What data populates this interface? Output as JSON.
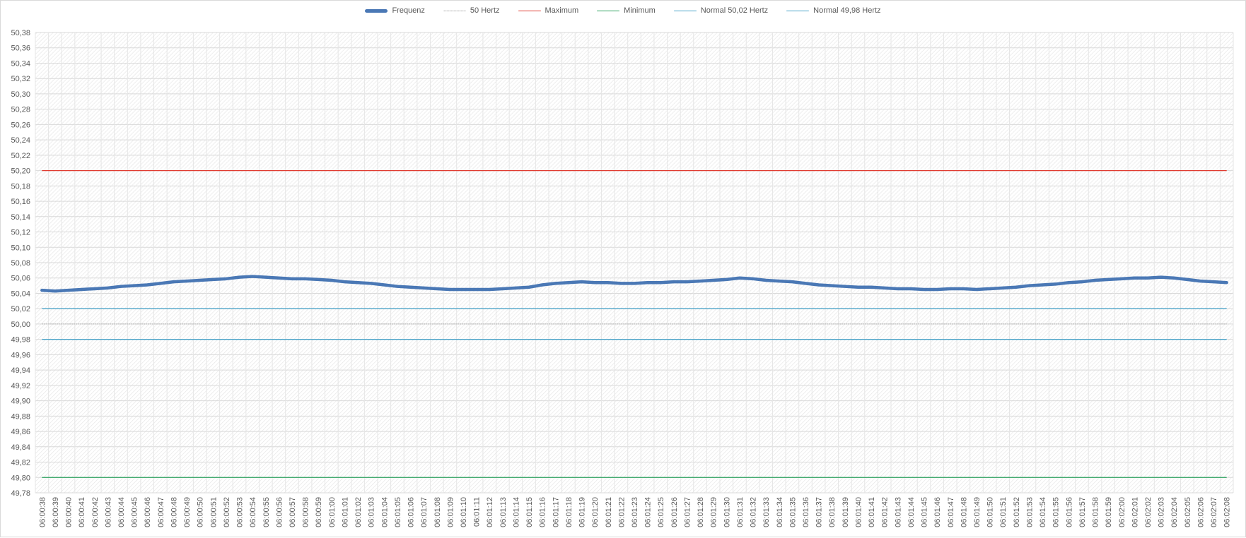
{
  "chart_data": {
    "type": "line",
    "title": "",
    "xlabel": "",
    "ylabel": "",
    "ylim": [
      49.78,
      50.38
    ],
    "grid": true,
    "legend_position": "top",
    "yticks": [
      "50,38",
      "50,36",
      "50,34",
      "50,32",
      "50,30",
      "50,28",
      "50,26",
      "50,24",
      "50,22",
      "50,20",
      "50,18",
      "50,16",
      "50,14",
      "50,12",
      "50,10",
      "50,08",
      "50,06",
      "50,04",
      "50,02",
      "50,00",
      "49,98",
      "49,96",
      "49,94",
      "49,92",
      "49,90",
      "49,88",
      "49,86",
      "49,84",
      "49,82",
      "49,80",
      "49,78"
    ],
    "x": [
      "06:00:38",
      "06:00:39",
      "06:00:40",
      "06:00:41",
      "06:00:42",
      "06:00:43",
      "06:00:44",
      "06:00:45",
      "06:00:46",
      "06:00:47",
      "06:00:48",
      "06:00:49",
      "06:00:50",
      "06:00:51",
      "06:00:52",
      "06:00:53",
      "06:00:54",
      "06:00:55",
      "06:00:56",
      "06:00:57",
      "06:00:58",
      "06:00:59",
      "06:01:00",
      "06:01:01",
      "06:01:02",
      "06:01:03",
      "06:01:04",
      "06:01:05",
      "06:01:06",
      "06:01:07",
      "06:01:08",
      "06:01:09",
      "06:01:10",
      "06:01:11",
      "06:01:12",
      "06:01:13",
      "06:01:14",
      "06:01:15",
      "06:01:16",
      "06:01:17",
      "06:01:18",
      "06:01:19",
      "06:01:20",
      "06:01:21",
      "06:01:22",
      "06:01:23",
      "06:01:24",
      "06:01:25",
      "06:01:26",
      "06:01:27",
      "06:01:28",
      "06:01:29",
      "06:01:30",
      "06:01:31",
      "06:01:32",
      "06:01:33",
      "06:01:34",
      "06:01:35",
      "06:01:36",
      "06:01:37",
      "06:01:38",
      "06:01:39",
      "06:01:40",
      "06:01:41",
      "06:01:42",
      "06:01:43",
      "06:01:44",
      "06:01:45",
      "06:01:46",
      "06:01:47",
      "06:01:48",
      "06:01:49",
      "06:01:50",
      "06:01:51",
      "06:01:52",
      "06:01:53",
      "06:01:54",
      "06:01:55",
      "06:01:56",
      "06:01:57",
      "06:01:58",
      "06:01:59",
      "06:02:00",
      "06:02:01",
      "06:02:02",
      "06:02:03",
      "06:02:04",
      "06:02:05",
      "06:02:06",
      "06:02:07",
      "06:02:08"
    ],
    "series": [
      {
        "name": "Frequenz",
        "color": "#4a78b5",
        "style": "thick",
        "values": [
          50.044,
          50.043,
          50.044,
          50.045,
          50.046,
          50.047,
          50.049,
          50.05,
          50.051,
          50.053,
          50.055,
          50.056,
          50.057,
          50.058,
          50.059,
          50.061,
          50.062,
          50.061,
          50.06,
          50.059,
          50.059,
          50.058,
          50.057,
          50.055,
          50.054,
          50.053,
          50.051,
          50.049,
          50.048,
          50.047,
          50.046,
          50.045,
          50.045,
          50.045,
          50.045,
          50.046,
          50.047,
          50.048,
          50.051,
          50.053,
          50.054,
          50.055,
          50.054,
          50.054,
          50.053,
          50.053,
          50.054,
          50.054,
          50.055,
          50.055,
          50.056,
          50.057,
          50.058,
          50.06,
          50.059,
          50.057,
          50.056,
          50.055,
          50.053,
          50.051,
          50.05,
          50.049,
          50.048,
          50.048,
          50.047,
          50.046,
          50.046,
          50.045,
          50.045,
          50.046,
          50.046,
          50.045,
          50.046,
          50.047,
          50.048,
          50.05,
          50.051,
          50.052,
          50.054,
          50.055,
          50.057,
          50.058,
          50.059,
          50.06,
          50.06,
          50.061,
          50.06,
          50.058,
          50.056,
          50.055,
          50.054
        ]
      },
      {
        "name": "50 Hertz",
        "color": "#a6a6a6",
        "style": "dotted",
        "value": 50.0
      },
      {
        "name": "Maximum",
        "color": "#e03c31",
        "style": "solid",
        "value": 50.2
      },
      {
        "name": "Minimum",
        "color": "#2ca25f",
        "style": "solid",
        "value": 49.8
      },
      {
        "name": "Normal 50,02 Hertz",
        "color": "#4aa3c8",
        "style": "solid",
        "value": 50.02
      },
      {
        "name": "Normal 49,98 Hertz",
        "color": "#4aa3c8",
        "style": "solid",
        "value": 49.98
      }
    ]
  }
}
